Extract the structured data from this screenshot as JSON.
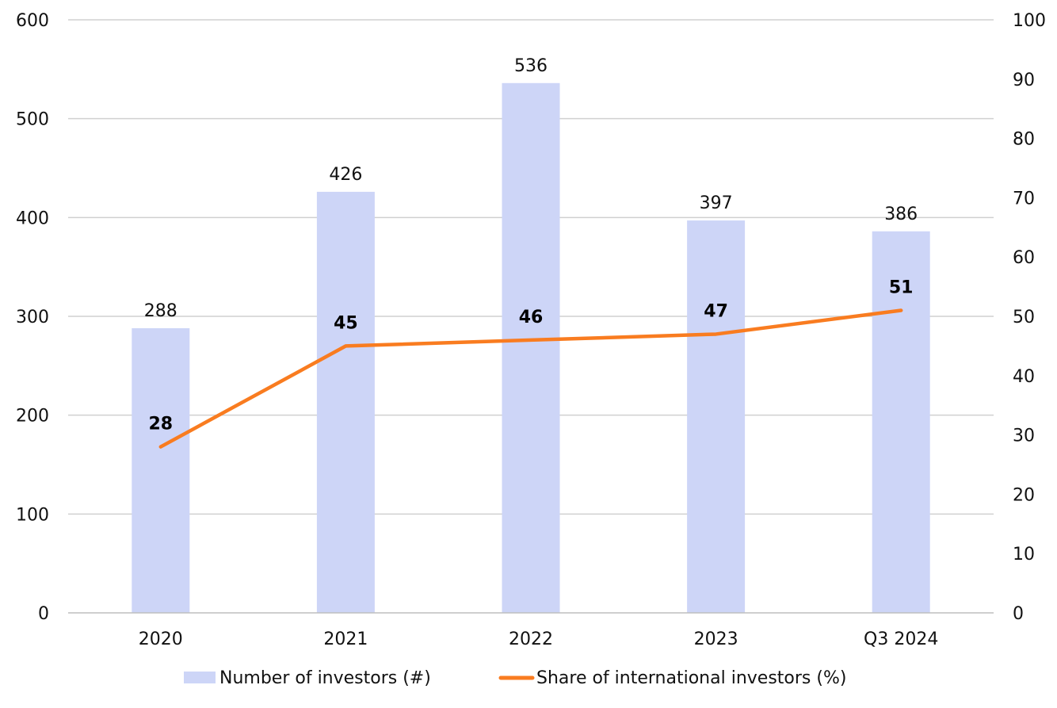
{
  "chart_data": {
    "type": "bar",
    "categories": [
      "2020",
      "2021",
      "2022",
      "2023",
      "Q3 2024"
    ],
    "series": [
      {
        "name": "Number of investors (#)",
        "type": "bar",
        "axis": "left",
        "values": [
          288,
          426,
          536,
          397,
          386
        ],
        "data_labels": [
          "288",
          "426",
          "536",
          "397",
          "386"
        ]
      },
      {
        "name": "Share of international investors (%)",
        "type": "line",
        "axis": "right",
        "values": [
          28,
          45,
          46,
          47,
          51
        ],
        "data_labels": [
          "28",
          "45",
          "46",
          "47",
          "51"
        ]
      }
    ],
    "y_left": {
      "ylim": [
        0,
        600
      ],
      "ticks": [
        "0",
        "100",
        "200",
        "300",
        "400",
        "500",
        "600"
      ]
    },
    "y_right": {
      "ylim": [
        0,
        100
      ],
      "ticks": [
        "0",
        "10",
        "20",
        "30",
        "40",
        "50",
        "60",
        "70",
        "80",
        "90",
        "100"
      ]
    },
    "grid": true,
    "legend_position": "bottom"
  },
  "colors": {
    "bar": "#cdd5f7",
    "line": "#f97c20",
    "grid": "#d0d0d0",
    "axis": "#bfbfbf"
  }
}
